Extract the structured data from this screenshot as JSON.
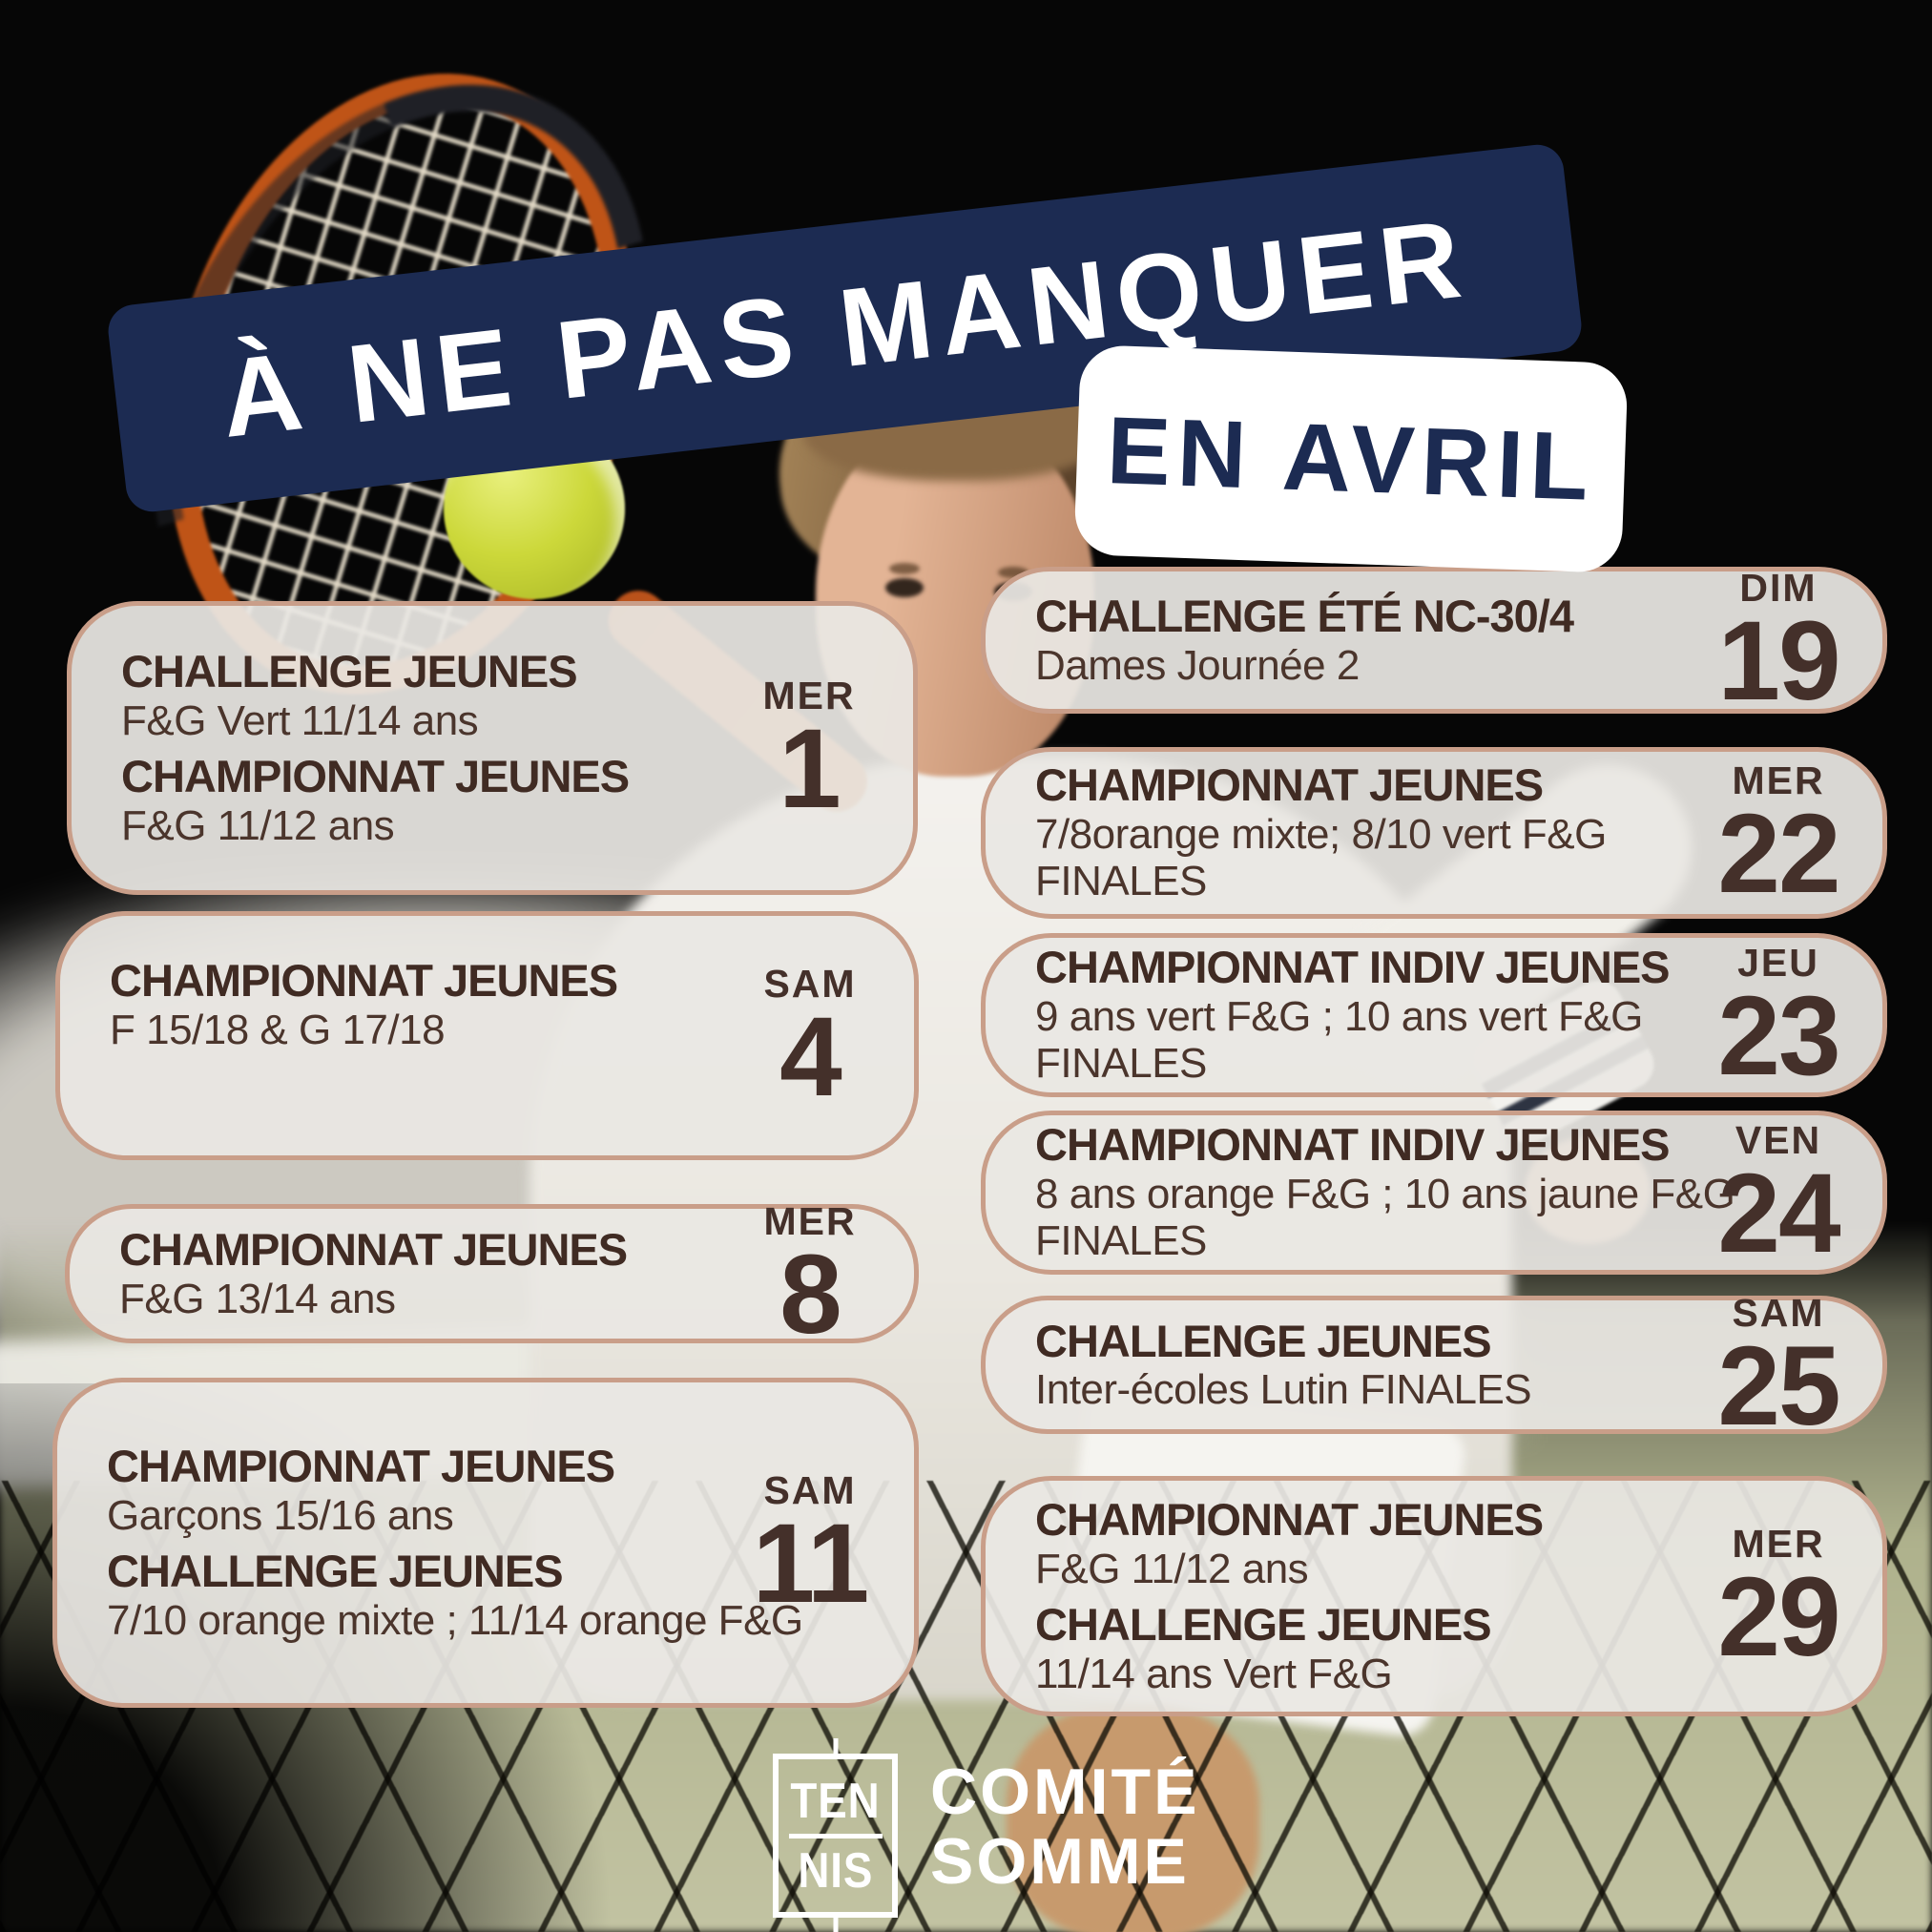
{
  "banner": {
    "title": "À NE PAS MANQUER",
    "badge": "EN AVRIL"
  },
  "events": [
    {
      "id": "l1",
      "day": "MER",
      "date": "1",
      "groups": [
        {
          "title": "CHALLENGE JEUNES",
          "subs": [
            "F&G Vert 11/14 ans"
          ]
        },
        {
          "title": "CHAMPIONNAT JEUNES",
          "subs": [
            "F&G 11/12 ans"
          ]
        }
      ]
    },
    {
      "id": "l2",
      "day": "SAM",
      "date": "4",
      "groups": [
        {
          "title": "CHAMPIONNAT JEUNES",
          "subs": [
            "F 15/18 & G 17/18"
          ]
        }
      ]
    },
    {
      "id": "l3",
      "day": "MER",
      "date": "8",
      "groups": [
        {
          "title": "CHAMPIONNAT JEUNES",
          "subs": [
            "F&G 13/14 ans"
          ]
        }
      ]
    },
    {
      "id": "l4",
      "day": "SAM",
      "date": "11",
      "groups": [
        {
          "title": "CHAMPIONNAT JEUNES",
          "subs": [
            "Garçons 15/16 ans"
          ]
        },
        {
          "title": "CHALLENGE JEUNES",
          "subs": [
            "7/10 orange mixte ; 11/14 orange F&G"
          ]
        }
      ]
    },
    {
      "id": "r1",
      "day": "DIM",
      "date": "19",
      "groups": [
        {
          "title": "CHALLENGE ÉTÉ NC-30/4",
          "subs": [
            "Dames Journée 2"
          ]
        }
      ]
    },
    {
      "id": "r2",
      "day": "MER",
      "date": "22",
      "groups": [
        {
          "title": "CHAMPIONNAT JEUNES",
          "subs": [
            "7/8orange mixte; 8/10 vert F&G",
            "FINALES"
          ]
        }
      ]
    },
    {
      "id": "r3",
      "day": "JEU",
      "date": "23",
      "groups": [
        {
          "title": "CHAMPIONNAT INDIV JEUNES",
          "subs": [
            "9 ans vert F&G ; 10 ans vert F&G",
            "FINALES"
          ]
        }
      ]
    },
    {
      "id": "r4",
      "day": "VEN",
      "date": "24",
      "groups": [
        {
          "title": "CHAMPIONNAT INDIV JEUNES",
          "subs": [
            "8 ans orange F&G ; 10 ans jaune F&G",
            "FINALES"
          ]
        }
      ]
    },
    {
      "id": "r5",
      "day": "SAM",
      "date": "25",
      "groups": [
        {
          "title": "CHALLENGE JEUNES",
          "subs": [
            "Inter-écoles Lutin FINALES"
          ]
        }
      ]
    },
    {
      "id": "r6",
      "day": "MER",
      "date": "29",
      "groups": [
        {
          "title": "CHAMPIONNAT JEUNES",
          "subs": [
            "F&G 11/12 ans"
          ]
        },
        {
          "title": "CHALLENGE JEUNES",
          "subs": [
            "11/14 ans Vert F&G"
          ]
        }
      ]
    }
  ],
  "footer": {
    "logo_line1": "TEN",
    "logo_line2": "NIS",
    "org_line1": "COMITÉ",
    "org_line2": "SOMME"
  },
  "colors": {
    "navy": "#1c2b52",
    "card_border": "#c99e89",
    "card_bg": "rgba(234,231,227,0.93)",
    "text_brown": "#44302a",
    "white": "#ffffff",
    "ball_green": "#ccd83a",
    "racket_orange": "#bf5417",
    "court_green": "#bcbf9c"
  }
}
